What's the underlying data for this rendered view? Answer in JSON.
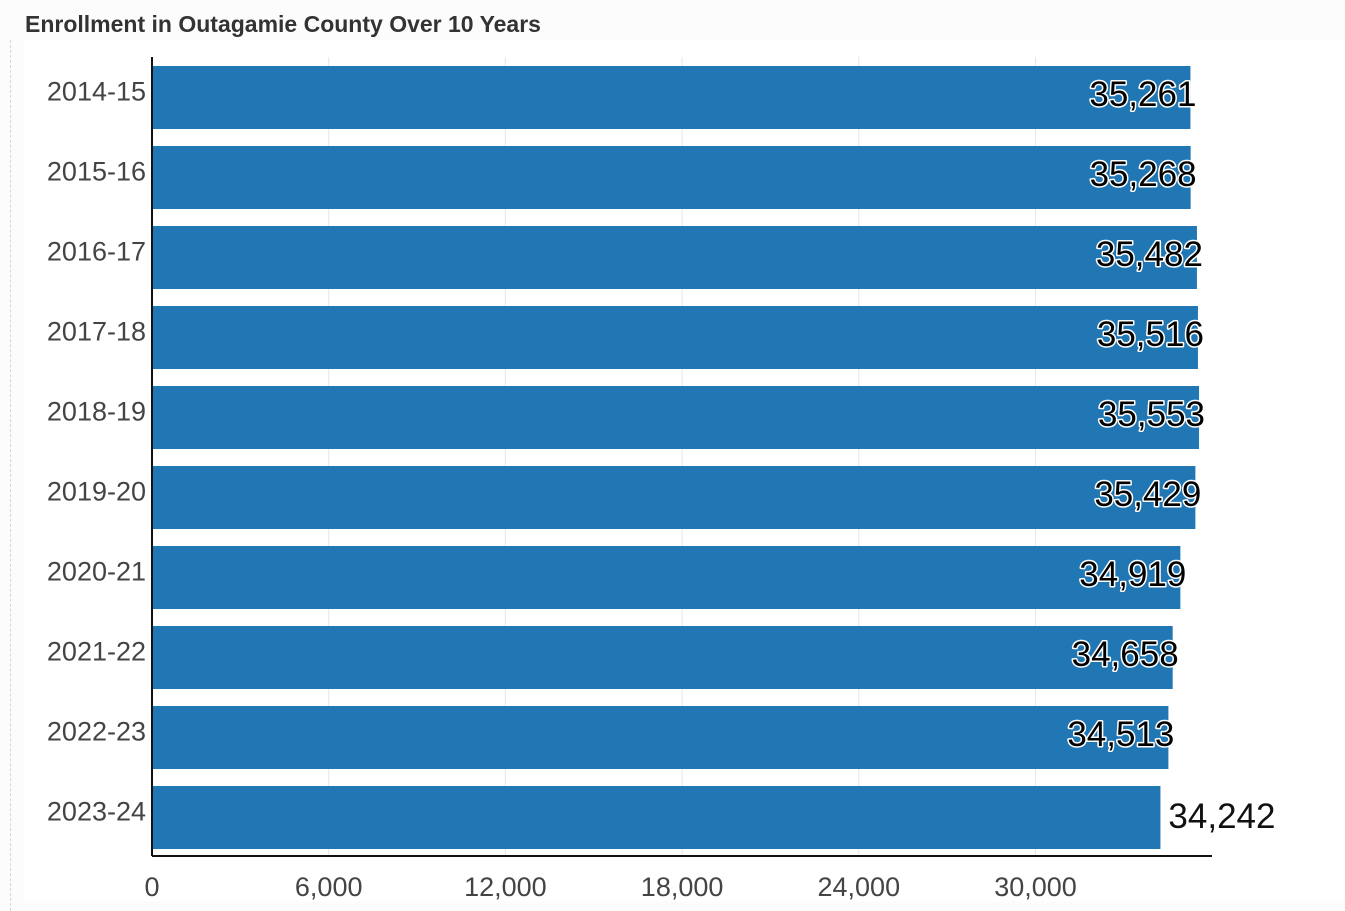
{
  "title": "Enrollment in Outagamie County Over 10 Years",
  "colors": {
    "bar": "#2177b4",
    "axis": "#111111",
    "grid": "#e6e6e6",
    "label": "#444444"
  },
  "chart_data": {
    "type": "bar",
    "orientation": "horizontal",
    "title": "Enrollment in Outagamie County Over 10 Years",
    "xlabel": "",
    "ylabel": "",
    "categories": [
      "2014-15",
      "2015-16",
      "2016-17",
      "2017-18",
      "2018-19",
      "2019-20",
      "2020-21",
      "2021-22",
      "2022-23",
      "2023-24"
    ],
    "values": [
      35261,
      35268,
      35482,
      35516,
      35553,
      35429,
      34919,
      34658,
      34513,
      34242
    ],
    "value_labels": [
      "35,261",
      "35,268",
      "35,482",
      "35,516",
      "35,553",
      "35,429",
      "34,919",
      "34,658",
      "34,513",
      "34,242"
    ],
    "xticks": [
      0,
      6000,
      12000,
      18000,
      24000,
      30000
    ],
    "xtick_labels": [
      "0",
      "6,000",
      "12,000",
      "18,000",
      "24,000",
      "30,000"
    ],
    "xlim": [
      0,
      36000
    ],
    "grid": true,
    "legend": "none"
  }
}
